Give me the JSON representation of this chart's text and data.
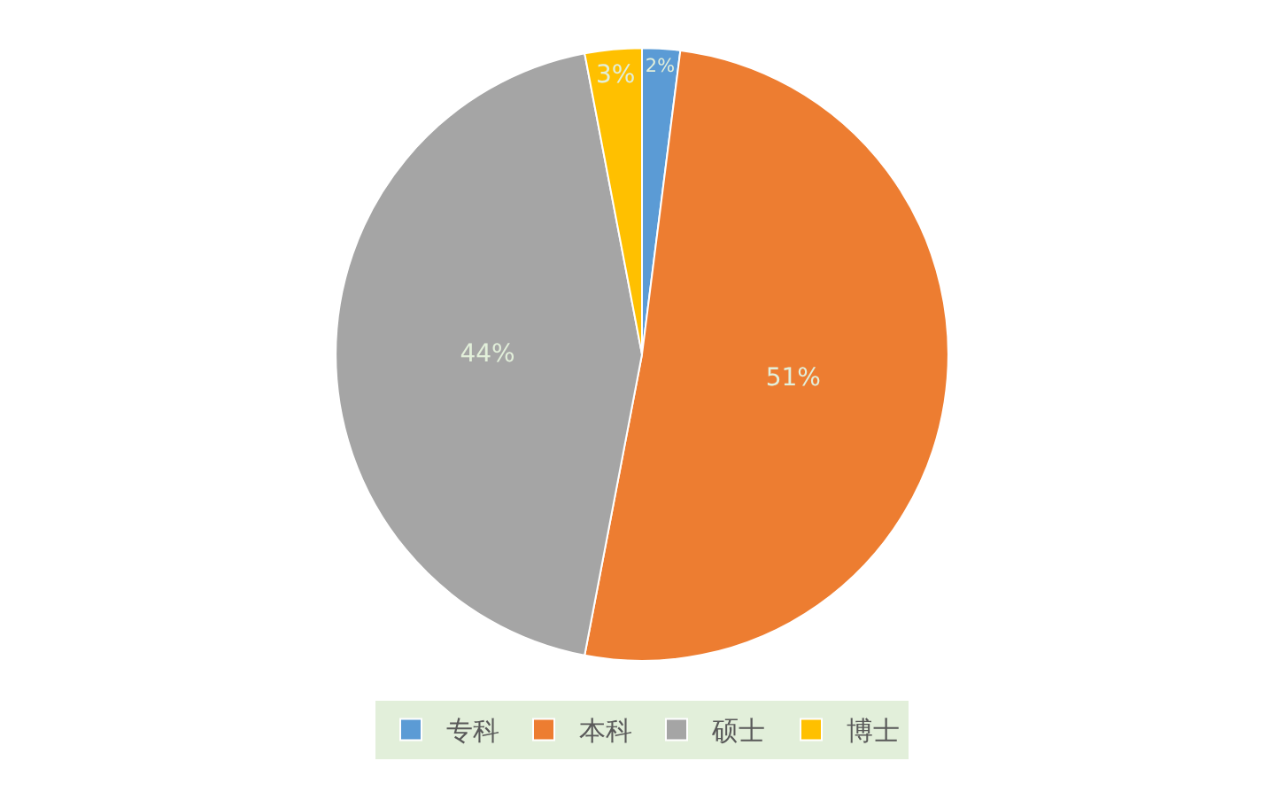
{
  "chart_data": {
    "type": "pie",
    "categories": [
      "专科",
      "本科",
      "硕士",
      "博士"
    ],
    "values": [
      2,
      51,
      44,
      3
    ],
    "colors": [
      "#5b9bd5",
      "#ed7d31",
      "#a5a5a5",
      "#ffc000"
    ],
    "value_labels": [
      "2%",
      "51%",
      "44%",
      "3%"
    ],
    "legend": "bottom"
  }
}
